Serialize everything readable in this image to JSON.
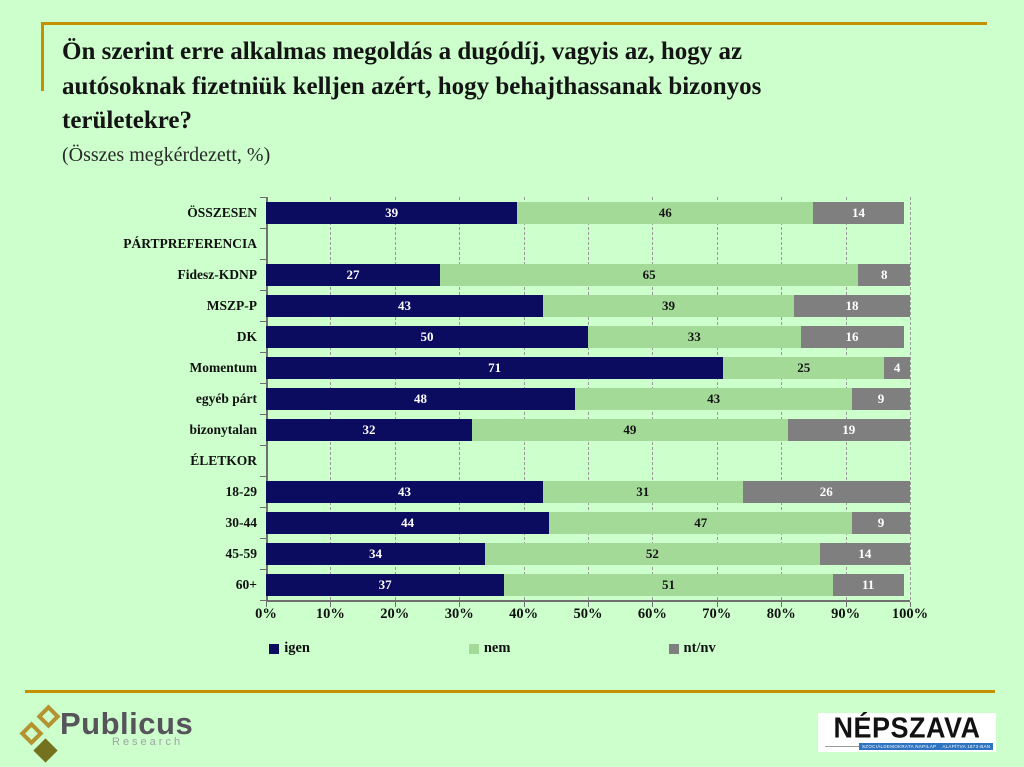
{
  "slide": {
    "title": "Ön szerint erre alkalmas megoldás a dugódíj, vagyis az, hogy az autósoknak fizetniük kelljen azért, hogy behajthassanak bizonyos területekre?",
    "subtitle": "(Összes megkérdezett, %)"
  },
  "chart_data": {
    "type": "bar",
    "stacked": true,
    "orientation": "horizontal",
    "categories": [
      "ÖSSZESEN",
      "PÁRTPREFERENCIA",
      "Fidesz-KDNP",
      "MSZP-P",
      "DK",
      "Momentum",
      "egyéb párt",
      "bizonytalan",
      "ÉLETKOR",
      "18-29",
      "30-44",
      "45-59",
      "60+"
    ],
    "header_rows": [
      "PÁRTPREFERENCIA",
      "ÉLETKOR"
    ],
    "series": [
      {
        "name": "igen",
        "color": "#0b0b60",
        "values": [
          39,
          null,
          27,
          43,
          50,
          71,
          48,
          32,
          null,
          43,
          44,
          34,
          37
        ]
      },
      {
        "name": "nem",
        "color": "#a4da98",
        "values": [
          46,
          null,
          65,
          39,
          33,
          25,
          43,
          49,
          null,
          31,
          47,
          52,
          51
        ]
      },
      {
        "name": "nt/nv",
        "color": "#7f7f7f",
        "values": [
          14,
          null,
          8,
          18,
          16,
          4,
          9,
          19,
          null,
          26,
          9,
          14,
          11
        ]
      }
    ],
    "x_axis": {
      "min": 0,
      "max": 100,
      "ticks": [
        "0%",
        "10%",
        "20%",
        "30%",
        "40%",
        "50%",
        "60%",
        "70%",
        "80%",
        "90%",
        "100%"
      ]
    },
    "legend": {
      "position": "bottom",
      "entries": [
        "igen",
        "nem",
        "nt/nv"
      ]
    },
    "grid": "vertical-dashed"
  },
  "footer": {
    "publicus": {
      "name": "Publicus",
      "sub": "Research"
    },
    "nepszava": {
      "name": "NÉPSZAVA",
      "tag_left": "SZOCIÁLDEMOKRATA NAPILAP",
      "tag_right": "ALAPÍTVA 1873-BAN"
    }
  },
  "colors": {
    "background": "#ccffcc",
    "accent_gold": "#c49000",
    "igen": "#0b0b60",
    "nem": "#a4da98",
    "ntnv": "#7f7f7f"
  }
}
